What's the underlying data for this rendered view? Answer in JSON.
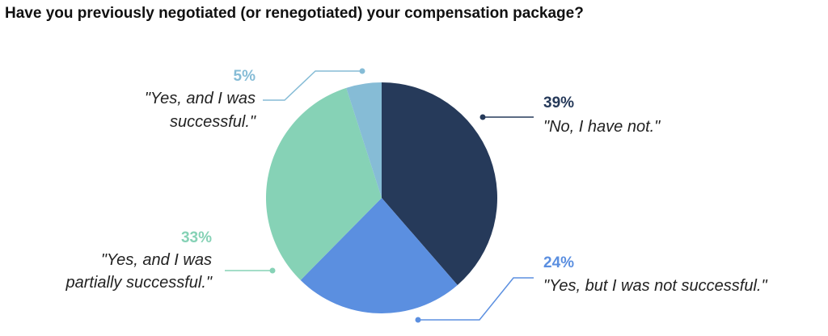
{
  "chart_data": {
    "type": "pie",
    "title": "Have you previously negotiated (or renegotiated) your compensation package?",
    "slices": [
      {
        "percent_label": "39%",
        "value": 39,
        "label": "\"No, I have not.\"",
        "color": "#263a5a"
      },
      {
        "percent_label": "24%",
        "value": 24,
        "label": "\"Yes, but I was not successful.\"",
        "color": "#5b8fe0"
      },
      {
        "percent_label": "33%",
        "value": 33,
        "label": "\"Yes, and I was partially successful.\"",
        "color": "#86d2b6"
      },
      {
        "percent_label": "5%",
        "value": 5,
        "label": "\"Yes, and I was successful.\"",
        "color": "#86bcd6"
      }
    ],
    "legend": "callout labels beside slices"
  }
}
